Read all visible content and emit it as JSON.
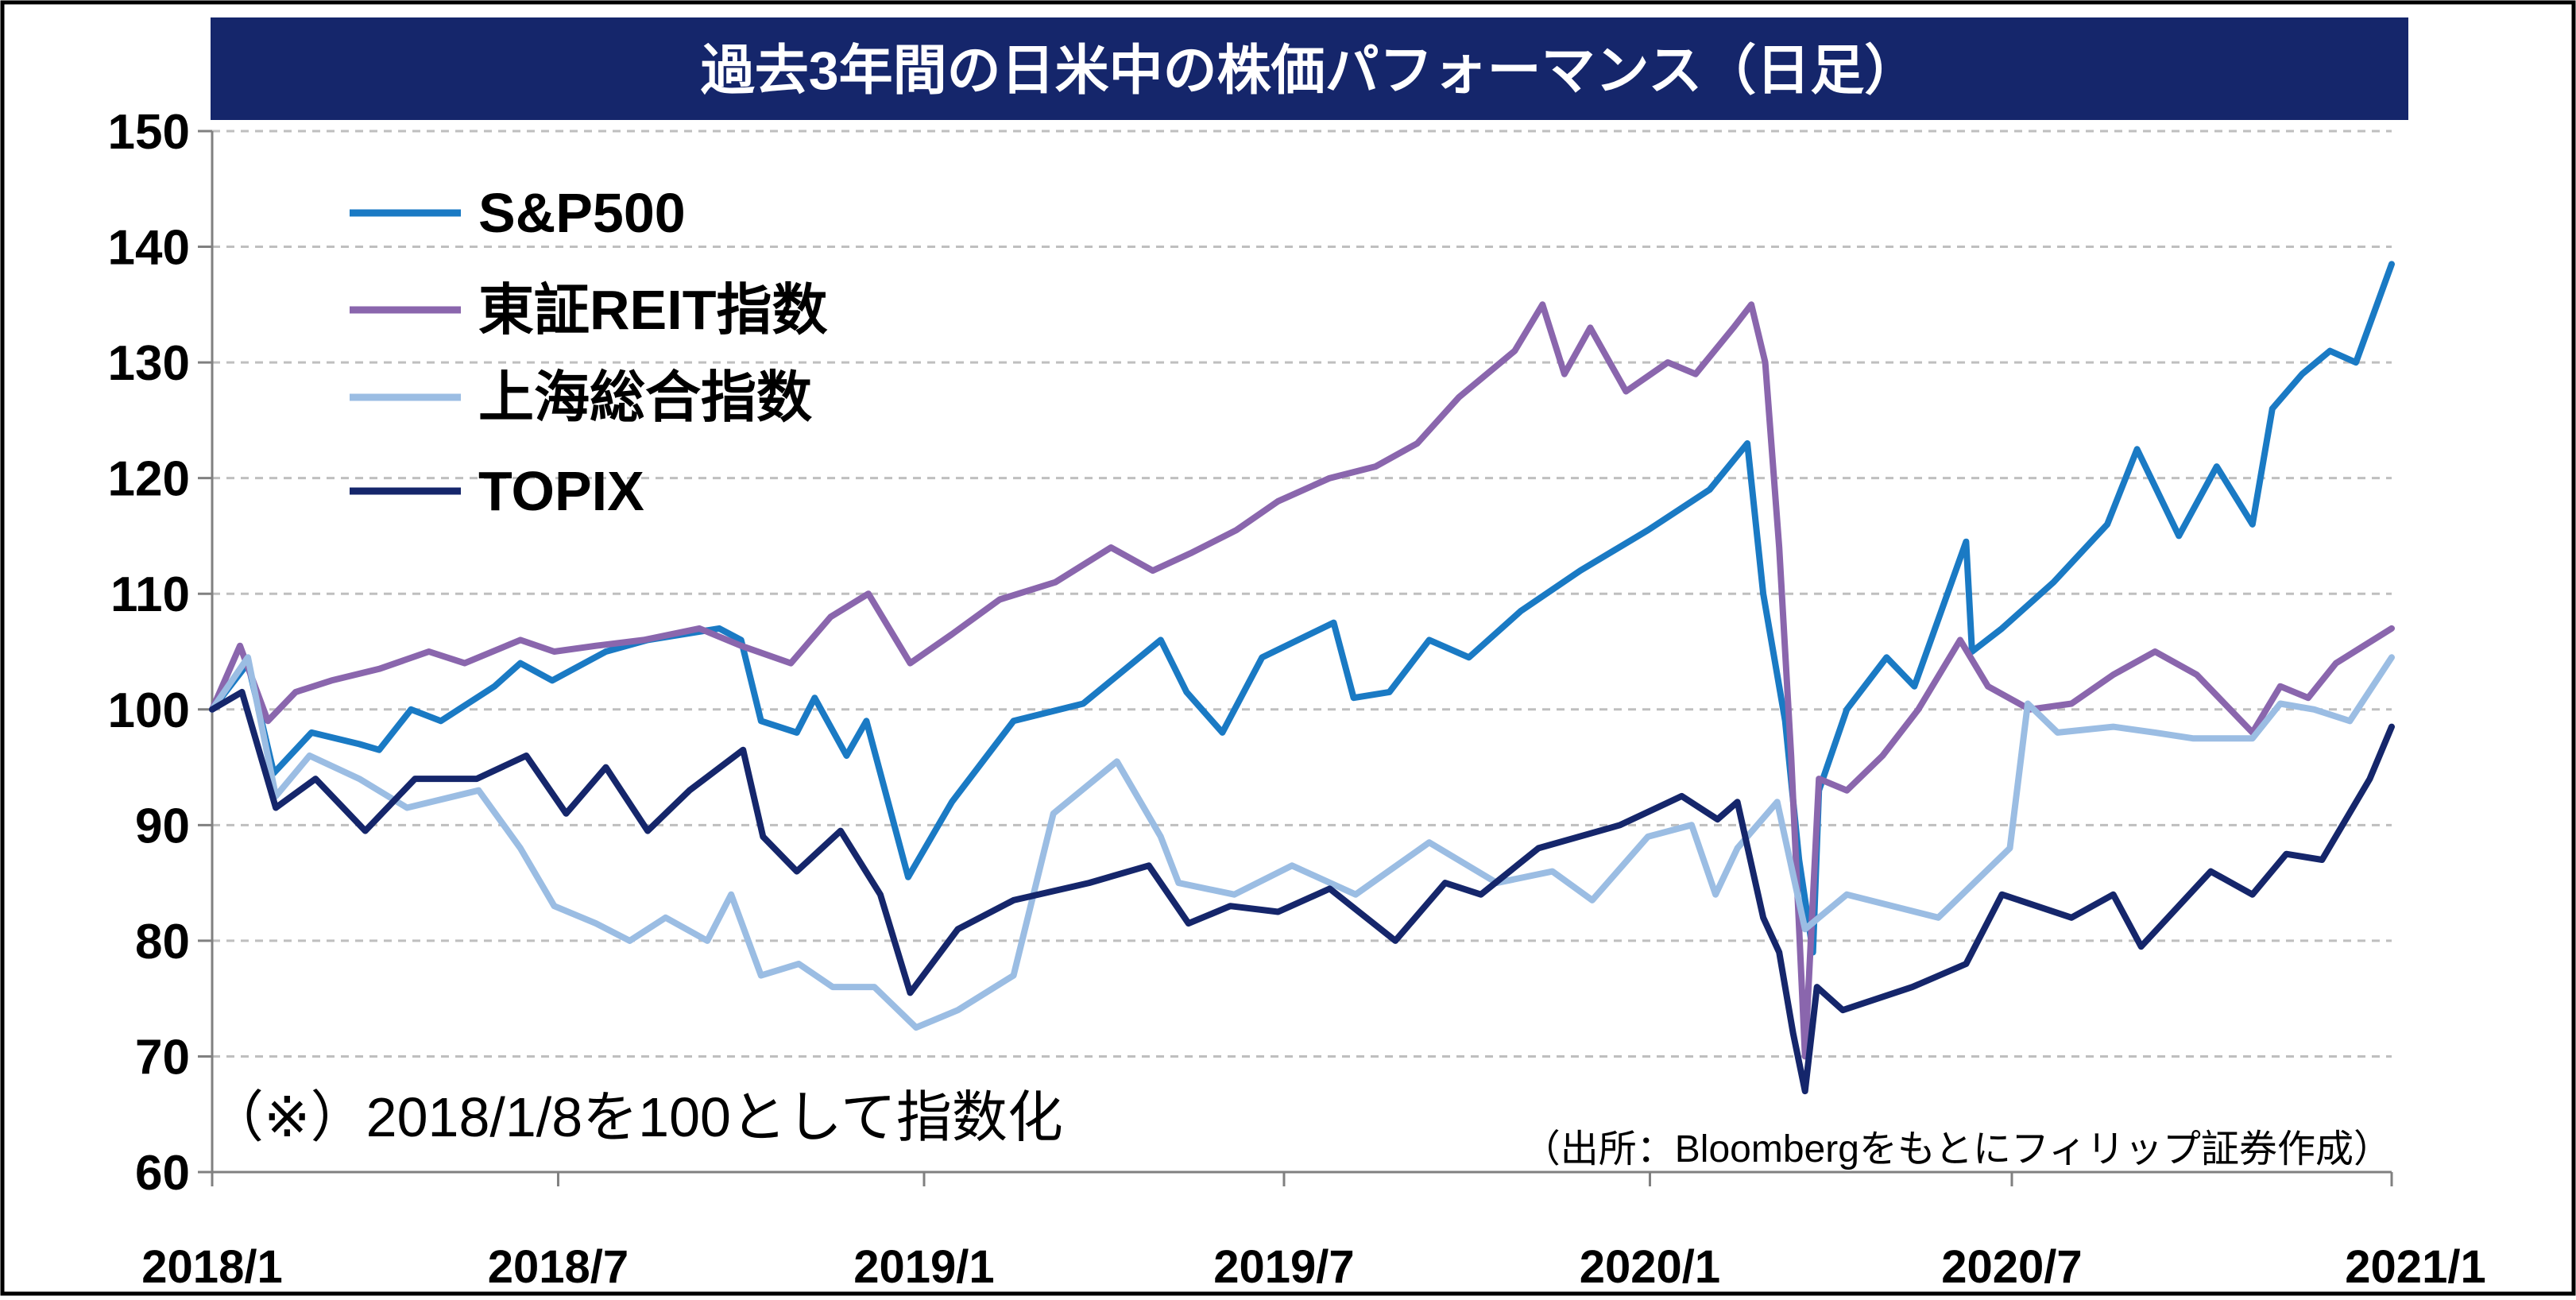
{
  "chart_data": {
    "type": "line",
    "title": "過去3年間の日米中の株価パフォーマンス（日足）",
    "note": "（※）2018/1/8を100として指数化",
    "source": "（出所：Bloombergをもとにフィリップ証券作成）",
    "xlabel": "",
    "ylabel": "",
    "ylim": [
      60,
      150
    ],
    "y_ticks": [
      "60",
      "70",
      "80",
      "90",
      "100",
      "110",
      "120",
      "130",
      "140",
      "150"
    ],
    "x_range": [
      "2018-01-08",
      "2021-01-08"
    ],
    "x_tick_labels": [
      "2018/1",
      "2018/7",
      "2019/1",
      "2019/7",
      "2020/1",
      "2020/7",
      "2021/1"
    ],
    "x_tick_dates": [
      "2018-01-08",
      "2018-07-01",
      "2019-01-01",
      "2019-07-01",
      "2020-01-01",
      "2020-07-01",
      "2021-01-08"
    ],
    "grid": "horizontal dashed",
    "legend_position": "top-left",
    "series": [
      {
        "name": "S&P500",
        "color": "#1a7ac4",
        "x": [
          "2018-01-08",
          "2018-01-26",
          "2018-02-08",
          "2018-02-27",
          "2018-03-23",
          "2018-04-02",
          "2018-04-18",
          "2018-05-03",
          "2018-05-30",
          "2018-06-12",
          "2018-06-28",
          "2018-07-25",
          "2018-08-15",
          "2018-09-20",
          "2018-10-01",
          "2018-10-11",
          "2018-10-29",
          "2018-11-07",
          "2018-11-23",
          "2018-12-03",
          "2018-12-24",
          "2019-01-15",
          "2019-02-15",
          "2019-03-22",
          "2019-04-30",
          "2019-05-13",
          "2019-05-31",
          "2019-06-20",
          "2019-07-26",
          "2019-08-05",
          "2019-08-23",
          "2019-09-12",
          "2019-10-02",
          "2019-10-28",
          "2019-11-27",
          "2019-12-31",
          "2020-01-31",
          "2020-02-19",
          "2020-02-27",
          "2020-03-09",
          "2020-03-16",
          "2020-03-23",
          "2020-03-26",
          "2020-04-09",
          "2020-04-29",
          "2020-05-13",
          "2020-06-08",
          "2020-06-11",
          "2020-06-26",
          "2020-07-22",
          "2020-08-18",
          "2020-09-02",
          "2020-09-23",
          "2020-10-12",
          "2020-10-30",
          "2020-11-09",
          "2020-11-24",
          "2020-12-08",
          "2020-12-21",
          "2021-01-08"
        ],
        "values": [
          100,
          104,
          94.5,
          98,
          97,
          96.5,
          100,
          99,
          102,
          104,
          102.5,
          105,
          106,
          107,
          106,
          99,
          98,
          101,
          96,
          99,
          85.5,
          92,
          99,
          100.5,
          106,
          101.5,
          98,
          104.5,
          107.5,
          101,
          101.5,
          106,
          104.5,
          108.5,
          112,
          115.5,
          119,
          123,
          110,
          99,
          87,
          79,
          93,
          100,
          104.5,
          102,
          114.5,
          105,
          107,
          111,
          116,
          122.5,
          115,
          121,
          116,
          126,
          129,
          131,
          130,
          138.5
        ]
      },
      {
        "name": "東証REIT指数",
        "color": "#8a66ad",
        "x": [
          "2018-01-08",
          "2018-01-22",
          "2018-02-05",
          "2018-02-19",
          "2018-03-09",
          "2018-04-02",
          "2018-04-27",
          "2018-05-15",
          "2018-06-12",
          "2018-06-29",
          "2018-07-20",
          "2018-08-13",
          "2018-09-10",
          "2018-10-01",
          "2018-10-26",
          "2018-11-15",
          "2018-12-04",
          "2018-12-25",
          "2019-01-15",
          "2019-02-08",
          "2019-03-08",
          "2019-04-05",
          "2019-04-26",
          "2019-05-15",
          "2019-06-07",
          "2019-06-28",
          "2019-07-24",
          "2019-08-16",
          "2019-09-06",
          "2019-09-27",
          "2019-10-25",
          "2019-11-08",
          "2019-11-19",
          "2019-12-02",
          "2019-12-20",
          "2020-01-10",
          "2020-01-24",
          "2020-02-12",
          "2020-02-21",
          "2020-02-28",
          "2020-03-06",
          "2020-03-12",
          "2020-03-19",
          "2020-03-26",
          "2020-04-09",
          "2020-04-27",
          "2020-05-15",
          "2020-06-05",
          "2020-06-19",
          "2020-07-10",
          "2020-07-31",
          "2020-08-21",
          "2020-09-11",
          "2020-10-02",
          "2020-10-30",
          "2020-11-13",
          "2020-11-27",
          "2020-12-11",
          "2020-12-25",
          "2021-01-08"
        ],
        "values": [
          100,
          105.5,
          99,
          101.5,
          102.5,
          103.5,
          105,
          104,
          106,
          105,
          105.5,
          106,
          107,
          105.5,
          104,
          108,
          110,
          104,
          106.5,
          109.5,
          111,
          114,
          112,
          113.5,
          115.5,
          118,
          120,
          121,
          123,
          127,
          131,
          135,
          129,
          133,
          127.5,
          130,
          129,
          133,
          135,
          130,
          114,
          96,
          70,
          94,
          93,
          96,
          100,
          106,
          102,
          100,
          100.5,
          103,
          105,
          103,
          98,
          102,
          101,
          104,
          105.5,
          107
        ]
      },
      {
        "name": "上海総合指数",
        "color": "#9bbde3",
        "x": [
          "2018-01-08",
          "2018-01-26",
          "2018-02-09",
          "2018-02-26",
          "2018-03-23",
          "2018-04-16",
          "2018-05-22",
          "2018-06-12",
          "2018-06-29",
          "2018-07-20",
          "2018-08-06",
          "2018-08-24",
          "2018-09-14",
          "2018-09-26",
          "2018-10-11",
          "2018-10-30",
          "2018-11-16",
          "2018-12-07",
          "2018-12-28",
          "2019-01-18",
          "2019-02-15",
          "2019-03-07",
          "2019-04-08",
          "2019-04-30",
          "2019-05-09",
          "2019-06-06",
          "2019-07-05",
          "2019-08-06",
          "2019-09-12",
          "2019-10-16",
          "2019-11-13",
          "2019-12-03",
          "2019-12-31",
          "2020-01-22",
          "2020-02-03",
          "2020-02-14",
          "2020-03-05",
          "2020-03-19",
          "2020-04-09",
          "2020-05-25",
          "2020-06-30",
          "2020-07-09",
          "2020-07-24",
          "2020-08-21",
          "2020-09-11",
          "2020-09-30",
          "2020-10-30",
          "2020-11-13",
          "2020-11-30",
          "2020-12-18",
          "2021-01-08"
        ],
        "values": [
          100,
          104.5,
          92.5,
          96,
          94,
          91.5,
          93,
          88,
          83,
          81.5,
          80,
          82,
          80,
          84,
          77,
          78,
          76,
          76,
          72.5,
          74,
          77,
          91,
          95.5,
          89,
          85,
          84,
          86.5,
          84,
          88.5,
          85,
          86,
          83.5,
          89,
          90,
          84,
          88,
          92,
          81,
          84,
          82,
          88,
          100.5,
          98,
          98.5,
          98,
          97.5,
          97.5,
          100.5,
          100,
          99,
          104.5
        ]
      },
      {
        "name": "TOPIX",
        "color": "#15266b",
        "x": [
          "2018-01-08",
          "2018-01-23",
          "2018-02-09",
          "2018-03-01",
          "2018-03-26",
          "2018-04-20",
          "2018-05-21",
          "2018-06-15",
          "2018-07-05",
          "2018-07-25",
          "2018-08-15",
          "2018-09-05",
          "2018-10-02",
          "2018-10-12",
          "2018-10-29",
          "2018-11-20",
          "2018-12-10",
          "2018-12-25",
          "2019-01-18",
          "2019-02-15",
          "2019-03-25",
          "2019-04-24",
          "2019-05-14",
          "2019-06-04",
          "2019-06-28",
          "2019-07-24",
          "2019-08-26",
          "2019-09-20",
          "2019-10-08",
          "2019-11-06",
          "2019-12-17",
          "2020-01-17",
          "2020-02-04",
          "2020-02-14",
          "2020-02-27",
          "2020-03-06",
          "2020-03-13",
          "2020-03-19",
          "2020-03-25",
          "2020-04-07",
          "2020-05-12",
          "2020-06-08",
          "2020-06-26",
          "2020-07-31",
          "2020-08-21",
          "2020-09-04",
          "2020-10-09",
          "2020-10-30",
          "2020-11-16",
          "2020-12-04",
          "2020-12-28",
          "2021-01-08"
        ],
        "values": [
          100,
          101.5,
          91.5,
          94,
          89.5,
          94,
          94,
          96,
          91,
          95,
          89.5,
          93,
          96.5,
          89,
          86,
          89.5,
          84,
          75.5,
          81,
          83.5,
          85,
          86.5,
          81.5,
          83,
          82.5,
          84.5,
          80,
          85,
          84,
          88,
          90,
          92.5,
          90.5,
          92,
          82,
          79,
          72,
          67,
          76,
          74,
          76,
          78,
          84,
          82,
          84,
          79.5,
          86,
          84,
          87.5,
          87,
          94,
          98.5
        ]
      }
    ]
  }
}
